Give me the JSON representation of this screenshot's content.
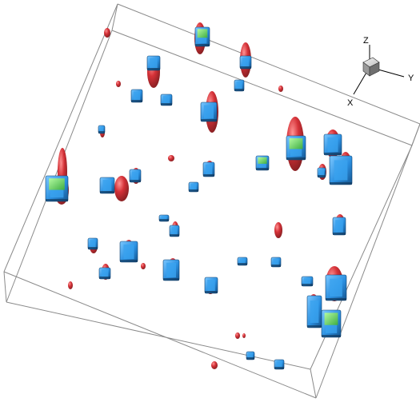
{
  "axis_triad": {
    "x_label": "X",
    "y_label": "Y",
    "z_label": "Z"
  },
  "colors": {
    "background": "#ffffff",
    "box_edge": "#8a8a8a",
    "red_isosurface": "#c0171c",
    "blue_blocks": "#2a8fe0",
    "green_blocks": "#63d65a"
  }
}
